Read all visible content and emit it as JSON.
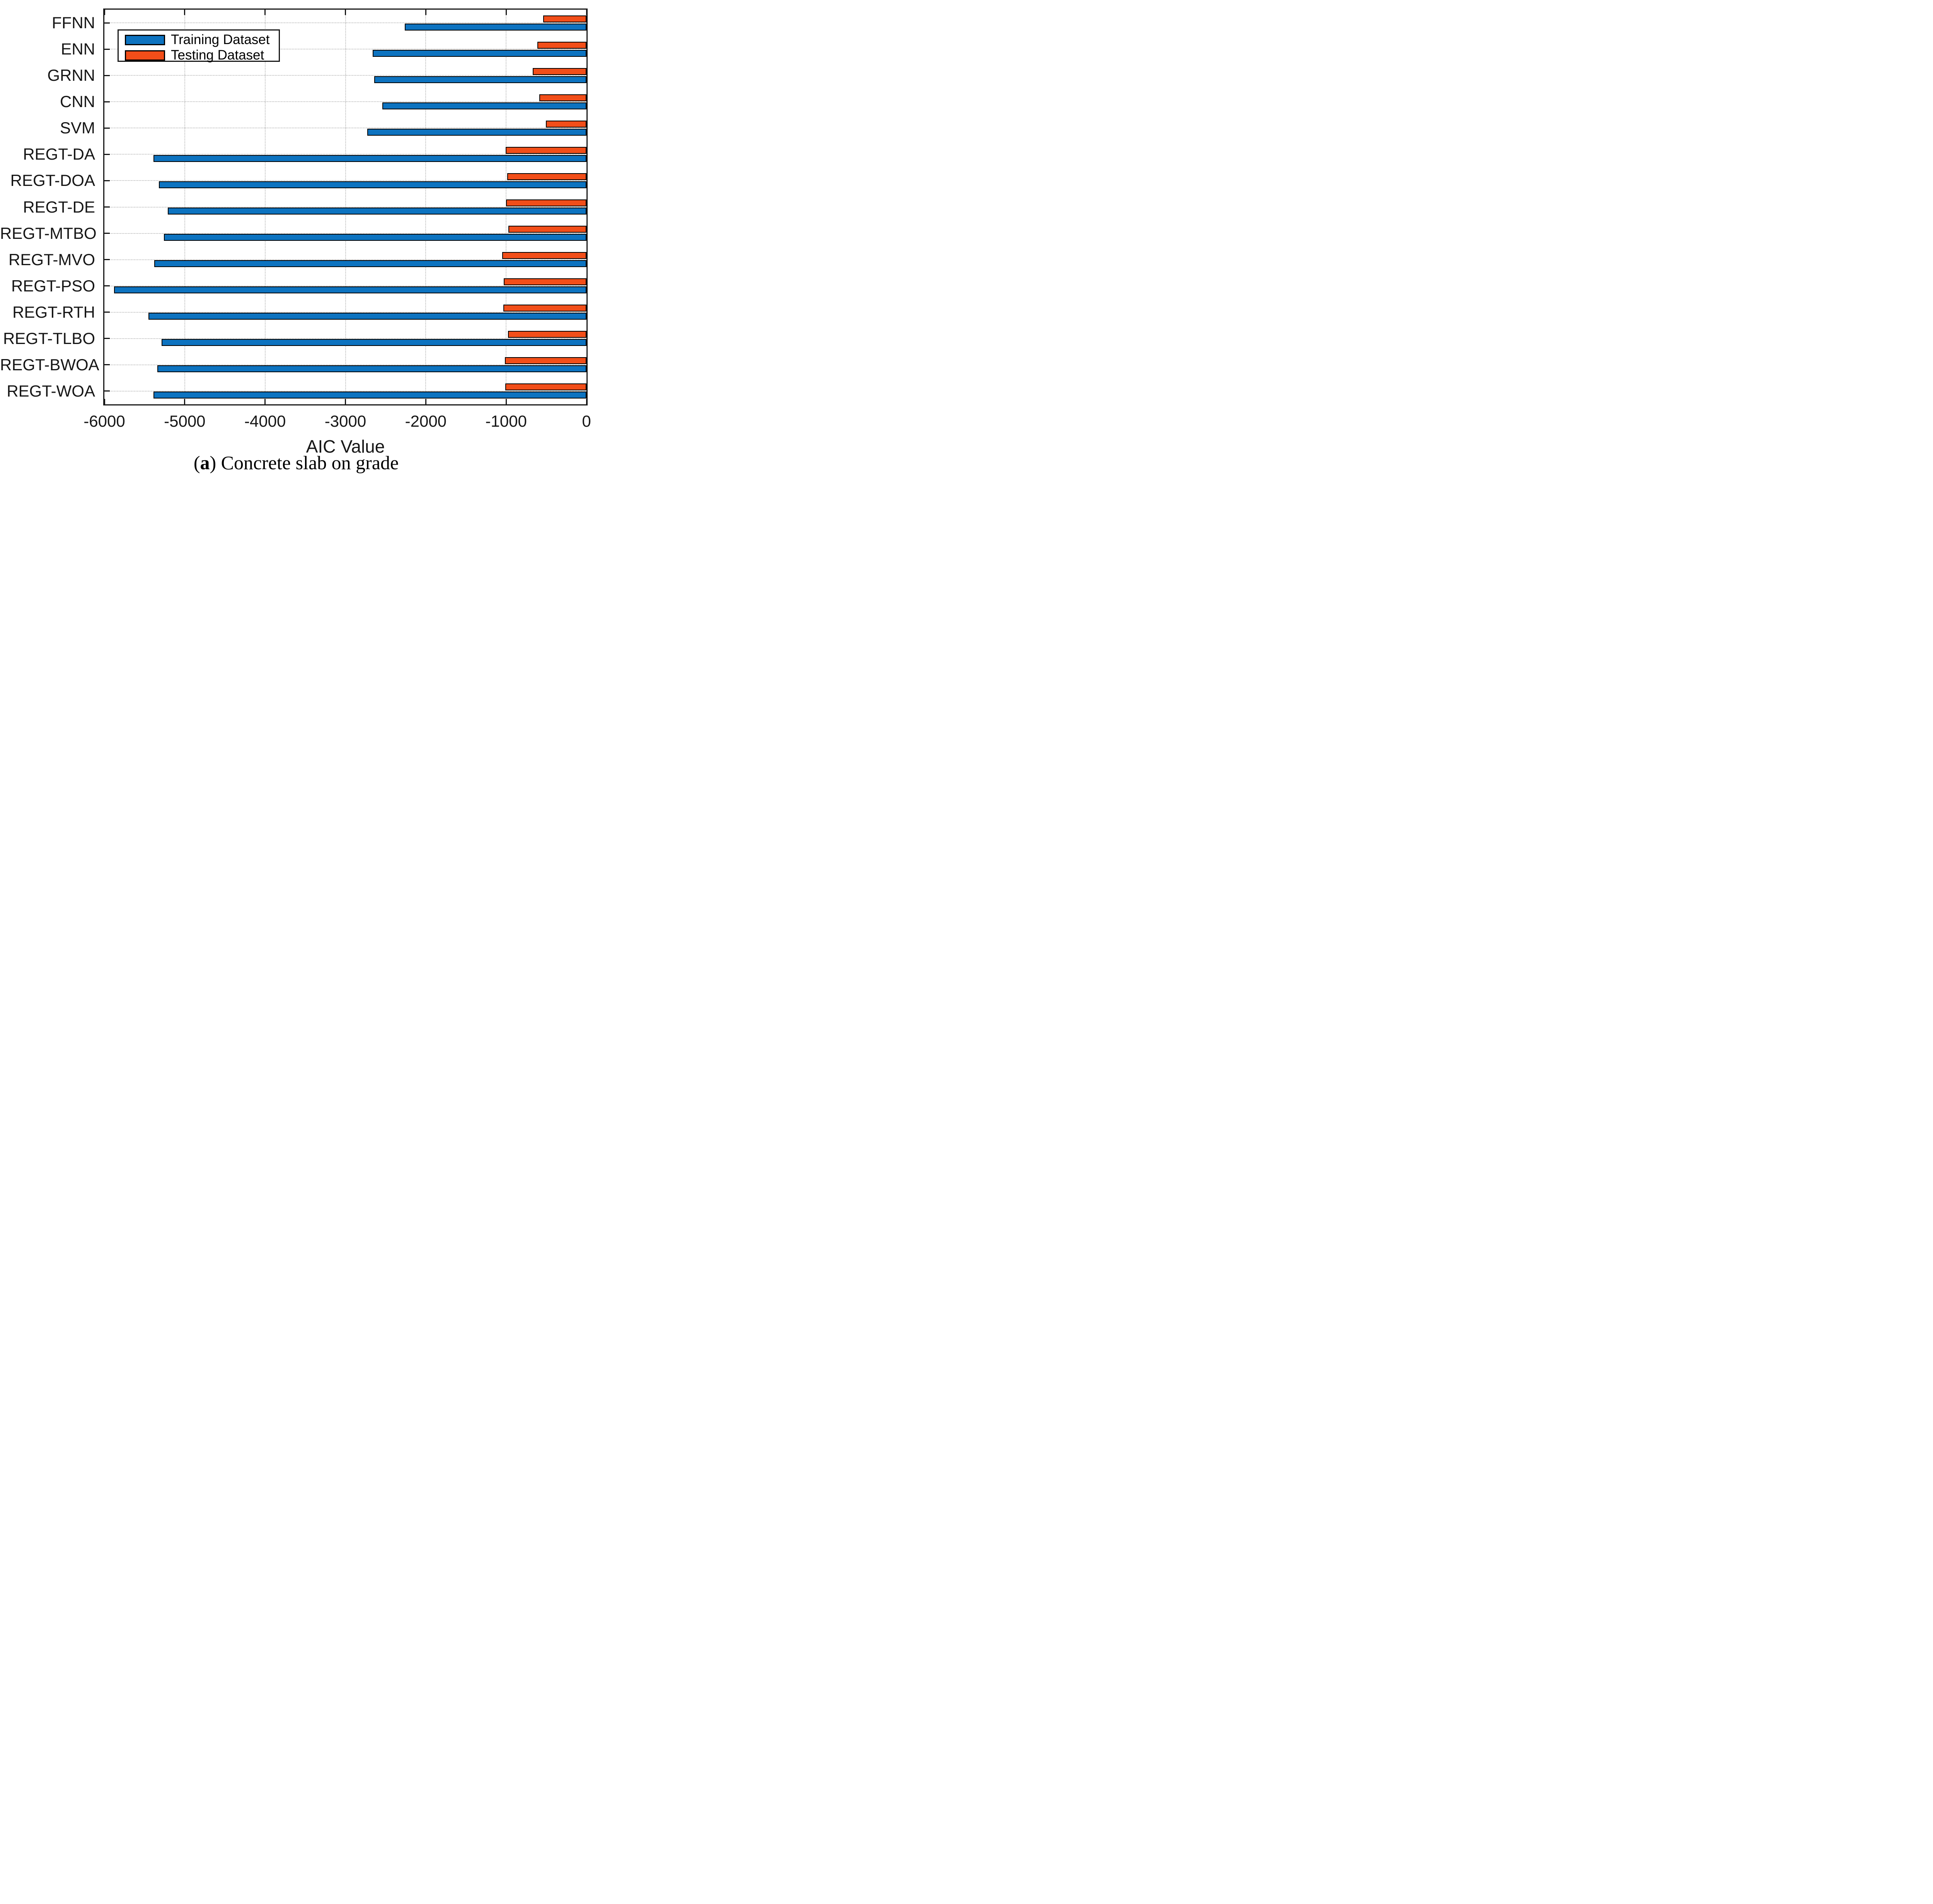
{
  "chart_data": {
    "type": "bar",
    "orientation": "horizontal",
    "xlabel": "AIC Value",
    "ylabel": "",
    "xlim": [
      -6000,
      0
    ],
    "xticks": [
      -6000,
      -5000,
      -4000,
      -3000,
      -2000,
      -1000,
      0
    ],
    "xtick_labels": [
      "-6000",
      "-5000",
      "-4000",
      "-3000",
      "-2000",
      "-1000",
      "0"
    ],
    "grid": true,
    "grid_style": "dotted",
    "legend_position": "top-left-inside",
    "categories": [
      "FFNN",
      "ENN",
      "GRNN",
      "CNN",
      "SVM",
      "REGT-DA",
      "REGT-DOA",
      "REGT-DE",
      "REGT-MTBO",
      "REGT-MVO",
      "REGT-PSO",
      "REGT-RTH",
      "REGT-TLBO",
      "REGT-BWOA",
      "REGT-WOA"
    ],
    "series": [
      {
        "name": "Training Dataset",
        "color": "#0d73c0",
        "values": [
          -2260,
          -2660,
          -2640,
          -2540,
          -2730,
          -5390,
          -5320,
          -5210,
          -5260,
          -5380,
          -5880,
          -5450,
          -5290,
          -5340,
          -5390
        ]
      },
      {
        "name": "Testing Dataset",
        "color": "#f24e19",
        "values": [
          -540,
          -610,
          -670,
          -585,
          -505,
          -1005,
          -985,
          -1000,
          -970,
          -1050,
          -1030,
          -1035,
          -975,
          -1015,
          -1010
        ]
      }
    ],
    "bar_border_color": "#000000",
    "axis_color": "#161616"
  },
  "caption": {
    "open": "(",
    "letter": "a",
    "rest": ") Concrete slab on grade"
  }
}
